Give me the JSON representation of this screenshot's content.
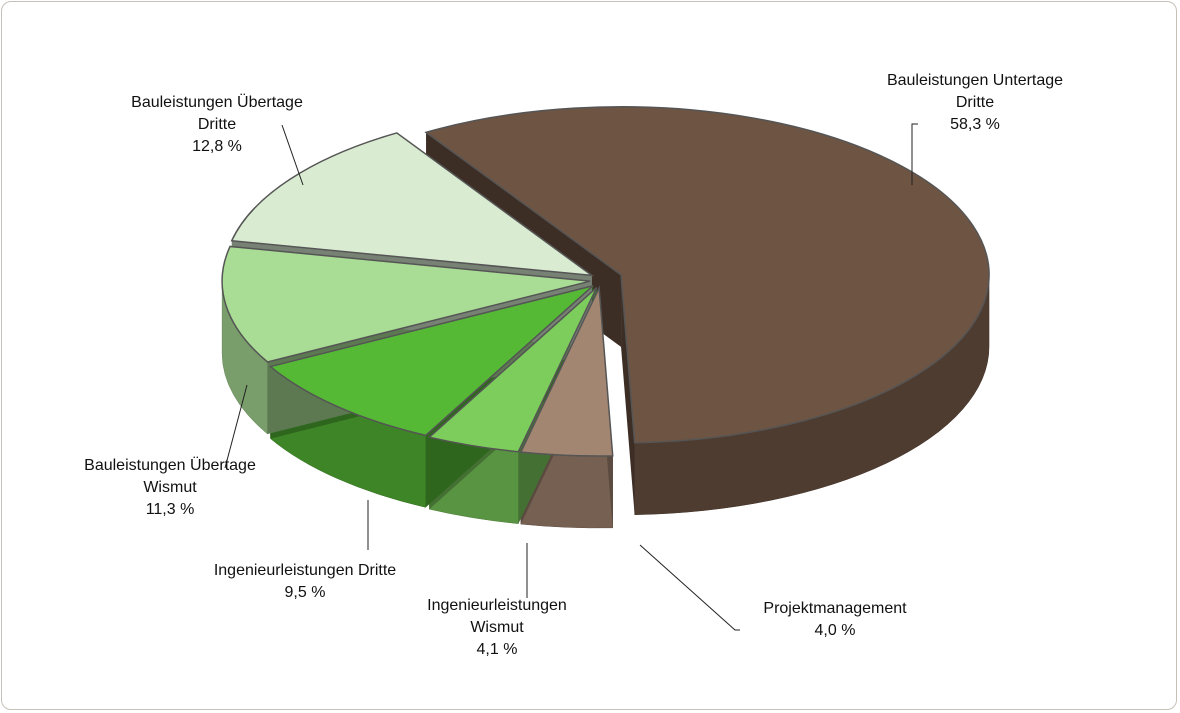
{
  "chart_data": {
    "type": "pie",
    "categories": [
      "Bauleistungen Untertage Dritte",
      "Projektmanagement",
      "Ingenieurleistungen Wismut",
      "Ingenieurleistungen Dritte",
      "Bauleistungen Übertage Wismut",
      "Bauleistungen Übertage Dritte"
    ],
    "values": [
      58.3,
      4.0,
      4.1,
      9.5,
      11.3,
      12.8
    ],
    "value_labels": [
      "58,3 %",
      "4,0 %",
      "4,1 %",
      "9,5 %",
      "11,3 %",
      "12,8 %"
    ],
    "colors": [
      "#6e5443",
      "#a38672",
      "#7ccd5c",
      "#55b935",
      "#a9dc94",
      "#d9ecd2"
    ]
  }
}
